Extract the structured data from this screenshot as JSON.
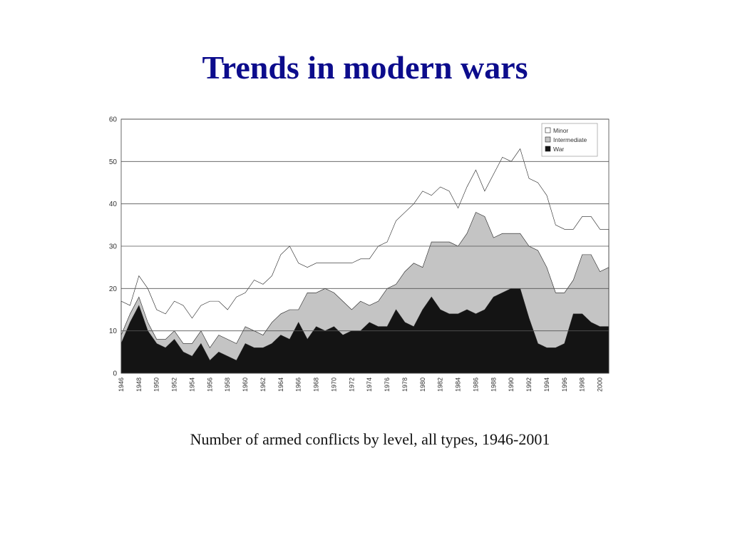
{
  "slide": {
    "title": "Trends in modern wars",
    "caption": "Number of armed conflicts by level, all types, 1946-2001"
  },
  "colors": {
    "title": "#0c0c8c",
    "war": "#141414",
    "intermediate": "#c4c4c4",
    "minor": "#ffffff",
    "grid": "#555555"
  },
  "chart_data": {
    "type": "area",
    "stacked": true,
    "title": "",
    "xlabel": "",
    "ylabel": "",
    "x": [
      1946,
      1947,
      1948,
      1949,
      1950,
      1951,
      1952,
      1953,
      1954,
      1955,
      1956,
      1957,
      1958,
      1959,
      1960,
      1961,
      1962,
      1963,
      1964,
      1965,
      1966,
      1967,
      1968,
      1969,
      1970,
      1971,
      1972,
      1973,
      1974,
      1975,
      1976,
      1977,
      1978,
      1979,
      1980,
      1981,
      1982,
      1983,
      1984,
      1985,
      1986,
      1987,
      1988,
      1989,
      1990,
      1991,
      1992,
      1993,
      1994,
      1995,
      1996,
      1997,
      1998,
      1999,
      2000,
      2001
    ],
    "x_tick_labels": [
      "1946",
      "1948",
      "1950",
      "1952",
      "1954",
      "1956",
      "1958",
      "1960",
      "1962",
      "1964",
      "1966",
      "1968",
      "1970",
      "1972",
      "1974",
      "1976",
      "1978",
      "1980",
      "1982",
      "1984",
      "1986",
      "1988",
      "1990",
      "1992",
      "1994",
      "1996",
      "1998",
      "2000"
    ],
    "ylim": [
      0,
      60
    ],
    "y_ticks": [
      0,
      10,
      20,
      30,
      40,
      50,
      60
    ],
    "grid": true,
    "legend_position": "top-right",
    "series": [
      {
        "name": "War",
        "values": [
          7,
          12,
          16,
          10,
          7,
          6,
          8,
          5,
          4,
          7,
          3,
          5,
          4,
          3,
          7,
          6,
          6,
          7,
          9,
          8,
          12,
          8,
          11,
          10,
          11,
          9,
          10,
          10,
          12,
          11,
          11,
          15,
          12,
          11,
          15,
          18,
          15,
          14,
          14,
          15,
          14,
          15,
          18,
          19,
          20,
          20,
          13,
          7,
          6,
          6,
          7,
          14,
          14,
          12,
          11,
          11
        ]
      },
      {
        "name": "Intermediate",
        "values": [
          2,
          2,
          2,
          2,
          1,
          2,
          2,
          2,
          3,
          3,
          3,
          4,
          4,
          4,
          4,
          4,
          3,
          5,
          5,
          7,
          3,
          11,
          8,
          10,
          8,
          8,
          5,
          7,
          4,
          6,
          9,
          6,
          12,
          15,
          10,
          13,
          16,
          17,
          16,
          18,
          24,
          22,
          14,
          14,
          13,
          13,
          17,
          22,
          19,
          13,
          12,
          8,
          14,
          16,
          13,
          14
        ]
      },
      {
        "name": "Minor",
        "values": [
          8,
          2,
          5,
          8,
          7,
          6,
          7,
          9,
          6,
          6,
          11,
          8,
          7,
          11,
          8,
          12,
          12,
          11,
          14,
          15,
          11,
          6,
          7,
          6,
          7,
          9,
          11,
          10,
          11,
          13,
          11,
          15,
          14,
          14,
          18,
          11,
          13,
          12,
          9,
          11,
          10,
          6,
          15,
          18,
          17,
          20,
          16,
          16,
          17,
          16,
          15,
          12,
          9,
          9,
          10,
          9
        ]
      }
    ]
  }
}
